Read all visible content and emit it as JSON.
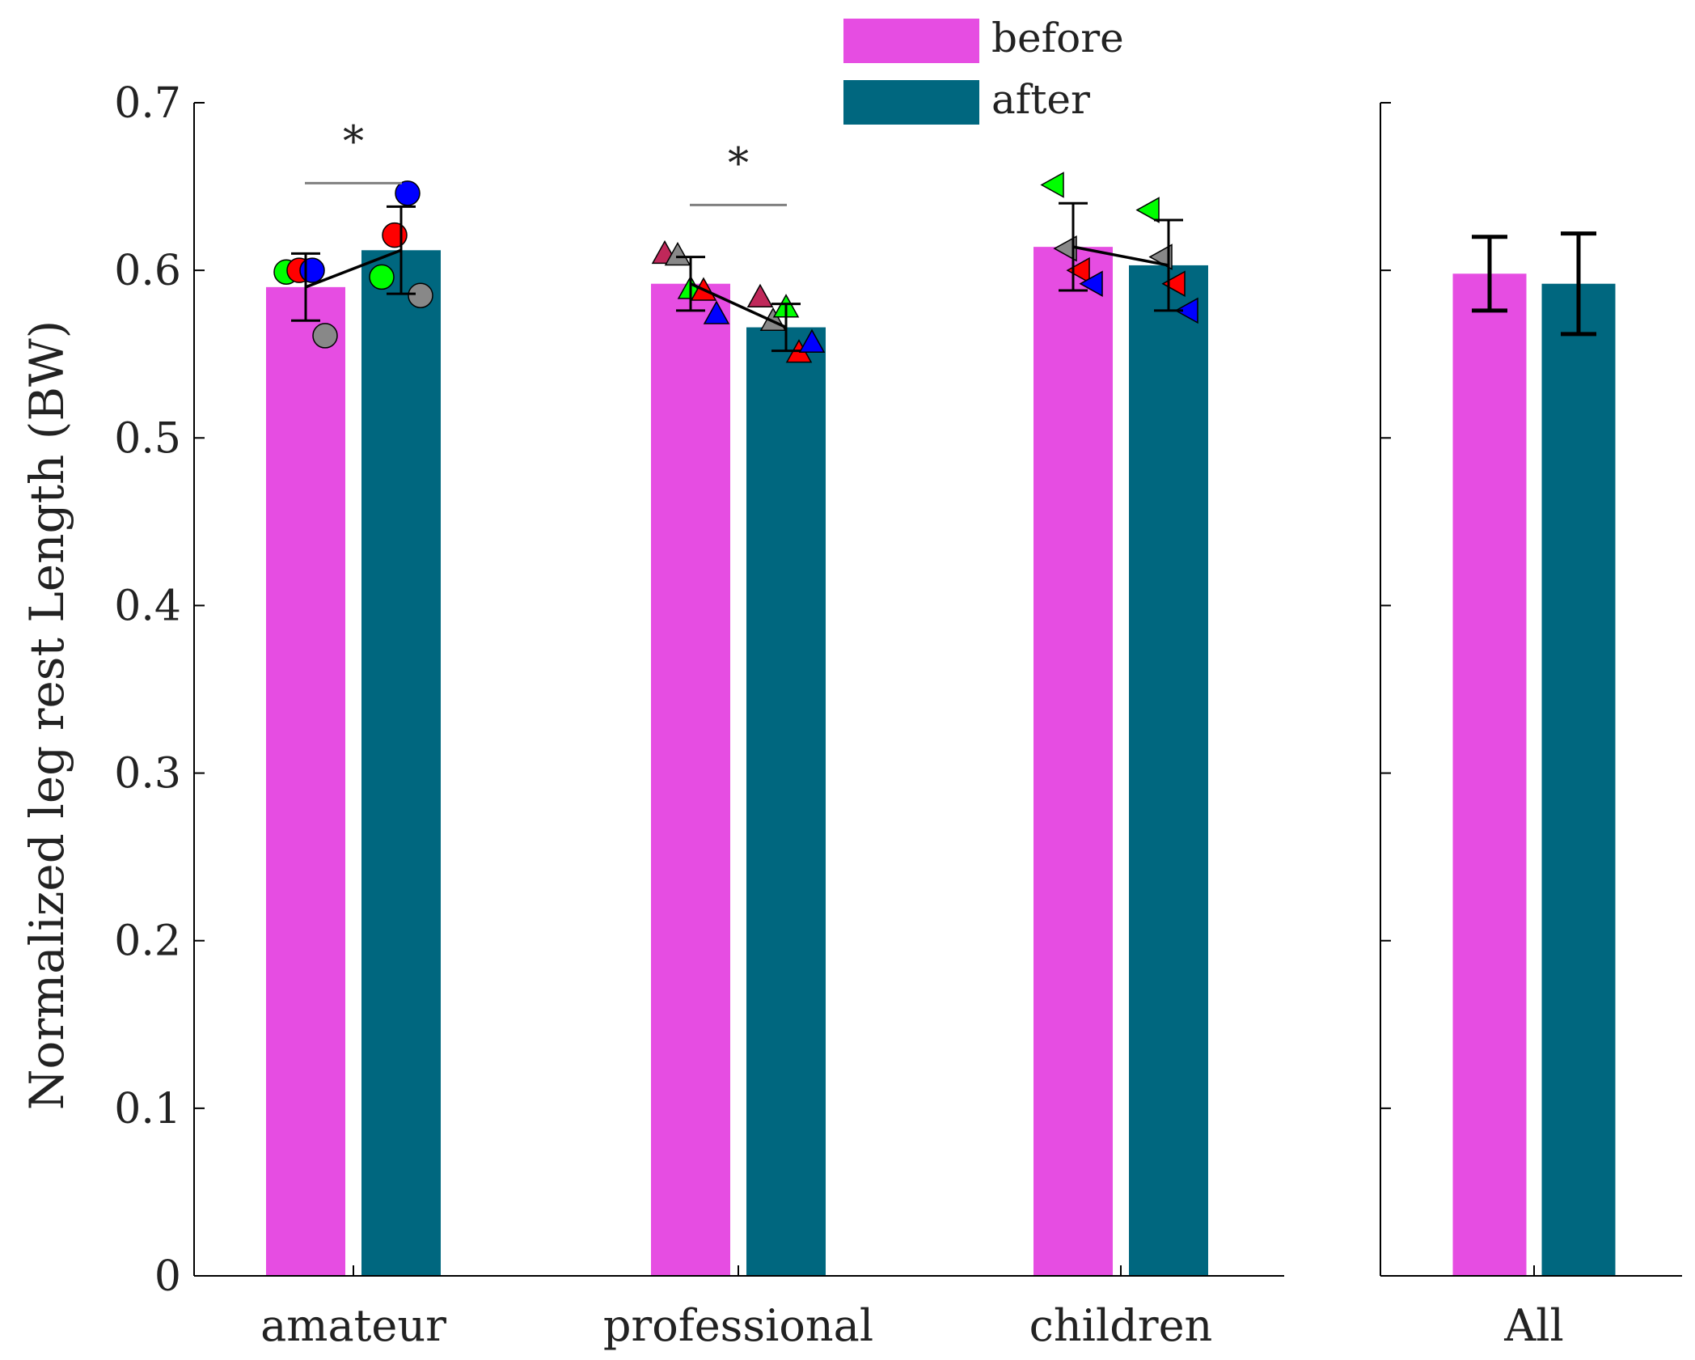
{
  "chart_data": [
    {
      "type": "bar",
      "panel": "groups",
      "categories": [
        "amateur",
        "professional",
        "children"
      ],
      "series": [
        {
          "name": "before",
          "color": "#E64DE2",
          "values": [
            0.59,
            0.592,
            0.614
          ],
          "error": [
            0.02,
            0.016,
            0.026
          ]
        },
        {
          "name": "after",
          "color": "#00677F",
          "values": [
            0.612,
            0.566,
            0.603
          ],
          "error": [
            0.026,
            0.014,
            0.027
          ]
        }
      ],
      "ylabel": "Normalized leg rest Length (BW)",
      "ylim": [
        0,
        0.7
      ],
      "yticks": [
        0,
        0.1,
        0.2,
        0.3,
        0.4,
        0.5,
        0.6,
        0.7
      ],
      "ytick_labels": [
        "0",
        "0.1",
        "0.2",
        "0.3",
        "0.4",
        "0.5",
        "0.6",
        "0.7"
      ],
      "significance": [
        {
          "category": "amateur",
          "label": "*",
          "y": 0.652
        },
        {
          "category": "professional",
          "label": "*",
          "y": 0.639
        }
      ],
      "individuals": [
        {
          "category": "amateur",
          "marker": "circle",
          "points": [
            {
              "color": "#00FF00",
              "before": 0.599,
              "after": 0.596
            },
            {
              "color": "#FF0000",
              "before": 0.6,
              "after": 0.621
            },
            {
              "color": "#0000FF",
              "before": 0.6,
              "after": 0.646
            },
            {
              "color": "#888888",
              "before": 0.561,
              "after": 0.585
            }
          ]
        },
        {
          "category": "professional",
          "marker": "triangle-up",
          "points": [
            {
              "color": "#C0285A",
              "before": 0.61,
              "after": 0.584
            },
            {
              "color": "#888888",
              "before": 0.609,
              "after": 0.57
            },
            {
              "color": "#00FF00",
              "before": 0.589,
              "after": 0.578
            },
            {
              "color": "#FF0000",
              "before": 0.588,
              "after": 0.551
            },
            {
              "color": "#0000FF",
              "before": 0.574,
              "after": 0.557
            }
          ]
        },
        {
          "category": "children",
          "marker": "triangle-left",
          "points": [
            {
              "color": "#00FF00",
              "before": 0.651,
              "after": 0.636
            },
            {
              "color": "#888888",
              "before": 0.613,
              "after": 0.608
            },
            {
              "color": "#FF0000",
              "before": 0.6,
              "after": 0.592
            },
            {
              "color": "#0000FF",
              "before": 0.592,
              "after": 0.576
            }
          ]
        }
      ]
    },
    {
      "type": "bar",
      "panel": "all",
      "categories": [
        "All"
      ],
      "series": [
        {
          "name": "before",
          "color": "#E64DE2",
          "values": [
            0.598
          ],
          "error": [
            0.022
          ]
        },
        {
          "name": "after",
          "color": "#00677F",
          "values": [
            0.592
          ],
          "error": [
            0.03
          ]
        }
      ],
      "ylim": [
        0,
        0.7
      ],
      "yticks": [
        0,
        0.1,
        0.2,
        0.3,
        0.4,
        0.5,
        0.6,
        0.7
      ]
    }
  ],
  "legend": {
    "items": [
      {
        "label": "before",
        "color": "#E64DE2"
      },
      {
        "label": "after",
        "color": "#00677F"
      }
    ]
  }
}
